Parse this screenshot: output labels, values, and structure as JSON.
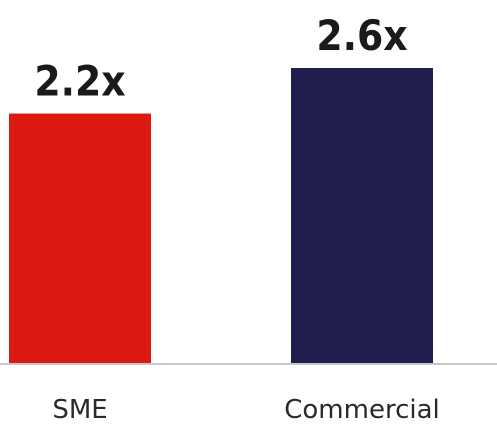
{
  "chart_data": {
    "type": "bar",
    "categories": [
      "SME",
      "Commercial"
    ],
    "values": [
      2.2,
      2.6
    ],
    "data_labels": [
      "2.2x",
      "2.6x"
    ],
    "colors": [
      "#dc1a12",
      "#201e4e"
    ],
    "axis_color": "#c8c8c8",
    "ylim": [
      0,
      2.6
    ],
    "grid": false,
    "legend": "none"
  }
}
